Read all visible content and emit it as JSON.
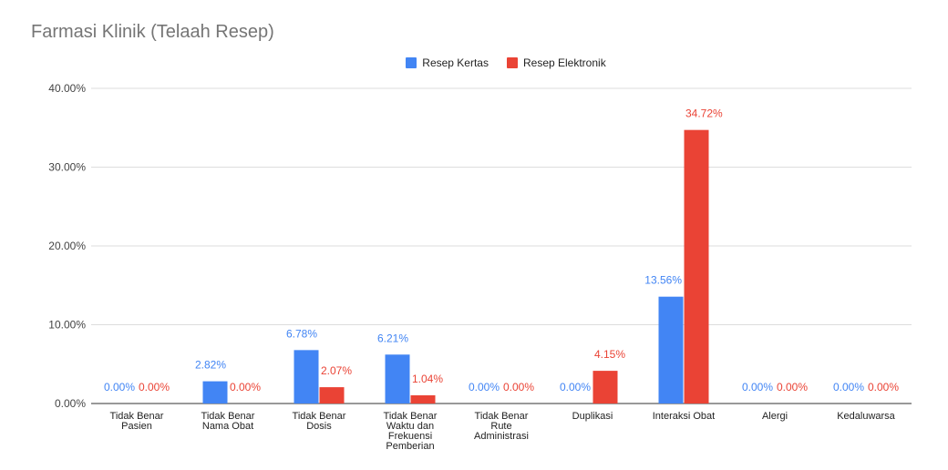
{
  "chart_data": {
    "type": "bar",
    "title": "Farmasi Klinik (Telaah Resep)",
    "categories": [
      [
        "Tidak Benar",
        "Pasien"
      ],
      [
        "Tidak Benar",
        "Nama Obat"
      ],
      [
        "Tidak Benar",
        "Dosis"
      ],
      [
        "Tidak Benar",
        "Waktu dan",
        "Frekuensi",
        "Pemberian"
      ],
      [
        "Tidak Benar",
        "Rute",
        "Administrasi"
      ],
      [
        "Duplikasi"
      ],
      [
        "Interaksi Obat"
      ],
      [
        "Alergi"
      ],
      [
        "Kedaluwarsa"
      ]
    ],
    "series": [
      {
        "name": "Resep Kertas",
        "color": "#4285f4",
        "values": [
          0,
          2.82,
          6.78,
          6.21,
          0,
          0,
          13.56,
          0,
          0
        ],
        "labels": [
          "0.00%",
          "2.82%",
          "6.78%",
          "6.21%",
          "0.00%",
          "0.00%",
          "13.56%",
          "0.00%",
          "0.00%"
        ]
      },
      {
        "name": "Resep Elektronik",
        "color": "#ea4335",
        "values": [
          0,
          0,
          2.07,
          1.04,
          0,
          4.15,
          34.72,
          0,
          0
        ],
        "labels": [
          "0.00%",
          "0.00%",
          "2.07%",
          "1.04%",
          "0.00%",
          "4.15%",
          "34.72%",
          "0.00%",
          "0.00%"
        ]
      }
    ],
    "yticks": [
      "0.00%",
      "10.00%",
      "20.00%",
      "30.00%",
      "40.00%"
    ],
    "ylim": [
      0,
      40
    ],
    "xlabel": "",
    "ylabel": "",
    "legend_position": "top",
    "grid": true
  }
}
